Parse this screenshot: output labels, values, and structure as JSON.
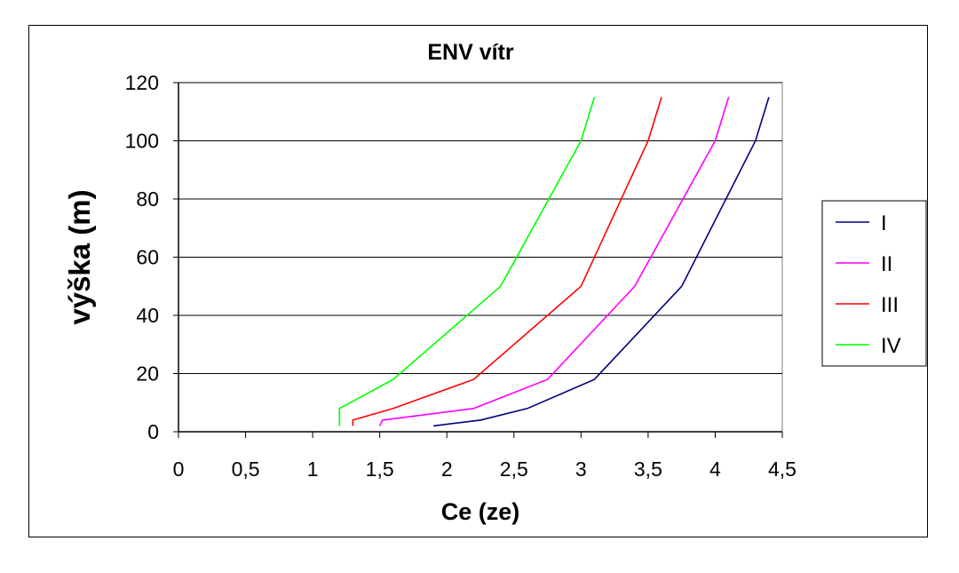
{
  "chart_data": {
    "type": "line",
    "title": "ENV vítr",
    "xlabel": "Ce (ze)",
    "ylabel": "výška (m)",
    "xlim": [
      0,
      4.5
    ],
    "ylim": [
      0,
      120
    ],
    "xticks": [
      "0",
      "0,5",
      "1",
      "1,5",
      "2",
      "2,5",
      "3",
      "3,5",
      "4",
      "4,5"
    ],
    "yticks": [
      "0",
      "20",
      "40",
      "60",
      "80",
      "100",
      "120"
    ],
    "grid": "horizontal",
    "legend_position": "right",
    "series": [
      {
        "name": "I",
        "color": "#000080",
        "points": [
          [
            1.9,
            2
          ],
          [
            2.25,
            4
          ],
          [
            2.6,
            8
          ],
          [
            3.1,
            18
          ],
          [
            3.75,
            50
          ],
          [
            4.3,
            100
          ],
          [
            4.4,
            115
          ]
        ]
      },
      {
        "name": "II",
        "color": "#ff00ff",
        "points": [
          [
            1.5,
            2
          ],
          [
            1.52,
            4
          ],
          [
            2.2,
            8
          ],
          [
            2.75,
            18
          ],
          [
            3.4,
            50
          ],
          [
            4.0,
            100
          ],
          [
            4.1,
            115
          ]
        ]
      },
      {
        "name": "III",
        "color": "#ff0000",
        "points": [
          [
            1.3,
            2
          ],
          [
            1.3,
            4
          ],
          [
            1.6,
            8
          ],
          [
            2.2,
            18
          ],
          [
            3.0,
            50
          ],
          [
            3.5,
            100
          ],
          [
            3.6,
            115
          ]
        ]
      },
      {
        "name": "IV",
        "color": "#00ff00",
        "points": [
          [
            1.2,
            2
          ],
          [
            1.2,
            8
          ],
          [
            1.6,
            18
          ],
          [
            2.4,
            50
          ],
          [
            3.0,
            100
          ],
          [
            3.1,
            115
          ]
        ]
      }
    ]
  }
}
